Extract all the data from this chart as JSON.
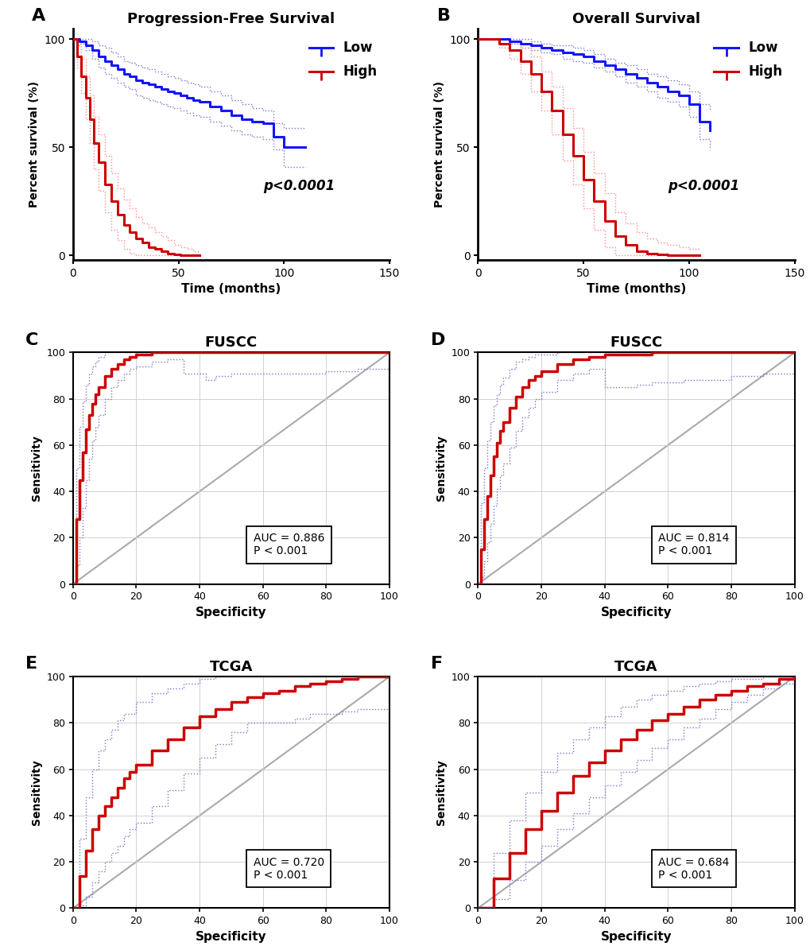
{
  "panel_A": {
    "title": "Progression-Free Survival",
    "xlabel": "Time (months)",
    "ylabel": "Percent survival (%)",
    "xlim": [
      0,
      150
    ],
    "ylim": [
      -2,
      105
    ],
    "xticks": [
      0,
      50,
      100,
      150
    ],
    "yticks": [
      0,
      50,
      100
    ],
    "pvalue": "p<0.0001",
    "label": "A",
    "blue_low": {
      "x": [
        0,
        3,
        6,
        9,
        12,
        15,
        18,
        21,
        24,
        27,
        30,
        33,
        36,
        39,
        42,
        45,
        48,
        51,
        54,
        57,
        60,
        65,
        70,
        75,
        80,
        85,
        90,
        95,
        100,
        105,
        110
      ],
      "y": [
        100,
        99,
        97,
        95,
        92,
        90,
        88,
        86,
        84,
        83,
        81,
        80,
        79,
        78,
        77,
        76,
        75,
        74,
        73,
        72,
        71,
        69,
        67,
        65,
        63,
        62,
        61,
        55,
        50,
        50,
        50
      ],
      "ci_upper": [
        100,
        100,
        100,
        99,
        97,
        96,
        94,
        92,
        90,
        89,
        88,
        87,
        86,
        85,
        84,
        83,
        82,
        81,
        80,
        79,
        78,
        76,
        74,
        72,
        70,
        68,
        67,
        61,
        59,
        59,
        59
      ],
      "ci_lower": [
        100,
        98,
        95,
        91,
        87,
        84,
        82,
        80,
        78,
        77,
        74,
        73,
        72,
        71,
        70,
        69,
        68,
        67,
        66,
        65,
        64,
        62,
        60,
        58,
        56,
        55,
        54,
        49,
        41,
        41,
        41
      ]
    },
    "red_high": {
      "x": [
        0,
        2,
        4,
        6,
        8,
        10,
        12,
        15,
        18,
        21,
        24,
        27,
        30,
        33,
        36,
        39,
        42,
        45,
        48,
        51,
        54,
        57,
        60
      ],
      "y": [
        100,
        92,
        83,
        73,
        63,
        52,
        43,
        33,
        25,
        19,
        14,
        11,
        8,
        6,
        4,
        3,
        2,
        1,
        0.5,
        0.2,
        0.1,
        0,
        0
      ],
      "ci_upper": [
        100,
        97,
        91,
        83,
        74,
        64,
        56,
        46,
        38,
        31,
        26,
        22,
        18,
        15,
        13,
        11,
        9,
        7,
        5,
        4,
        3,
        2,
        2
      ],
      "ci_lower": [
        100,
        87,
        75,
        63,
        52,
        40,
        30,
        20,
        12,
        7,
        3,
        1,
        0,
        0,
        0,
        0,
        0,
        0,
        0,
        0,
        0,
        0,
        0
      ]
    }
  },
  "panel_B": {
    "title": "Overall Survival",
    "xlabel": "Time (months)",
    "ylabel": "Percent survival (%)",
    "xlim": [
      0,
      150
    ],
    "ylim": [
      -2,
      105
    ],
    "xticks": [
      0,
      50,
      100,
      150
    ],
    "yticks": [
      0,
      50,
      100
    ],
    "pvalue": "p<0.0001",
    "label": "B",
    "blue_low": {
      "x": [
        0,
        5,
        10,
        15,
        20,
        25,
        30,
        35,
        40,
        45,
        50,
        55,
        60,
        65,
        70,
        75,
        80,
        85,
        90,
        95,
        100,
        105,
        110
      ],
      "y": [
        100,
        100,
        100,
        99,
        98,
        97,
        96,
        95,
        94,
        93,
        92,
        90,
        88,
        86,
        84,
        82,
        80,
        78,
        76,
        74,
        70,
        62,
        58
      ],
      "ci_upper": [
        100,
        100,
        100,
        100,
        100,
        99,
        98,
        97,
        97,
        96,
        95,
        93,
        91,
        89,
        88,
        86,
        84,
        83,
        81,
        79,
        76,
        70,
        67
      ],
      "ci_lower": [
        100,
        100,
        100,
        98,
        96,
        95,
        94,
        93,
        91,
        90,
        89,
        87,
        85,
        83,
        80,
        78,
        76,
        73,
        71,
        69,
        64,
        54,
        49
      ]
    },
    "red_high": {
      "x": [
        0,
        5,
        10,
        15,
        20,
        25,
        30,
        35,
        40,
        45,
        50,
        55,
        60,
        65,
        70,
        75,
        80,
        85,
        90,
        95,
        100,
        105
      ],
      "y": [
        100,
        100,
        98,
        95,
        90,
        84,
        76,
        67,
        56,
        46,
        35,
        25,
        16,
        9,
        5,
        2,
        1,
        0.5,
        0.2,
        0.1,
        0,
        0
      ],
      "ci_upper": [
        100,
        100,
        100,
        99,
        96,
        92,
        85,
        78,
        68,
        59,
        48,
        38,
        29,
        20,
        15,
        11,
        8,
        6,
        5,
        4,
        3,
        3
      ],
      "ci_lower": [
        100,
        100,
        96,
        91,
        84,
        76,
        67,
        56,
        44,
        33,
        22,
        12,
        4,
        0,
        0,
        0,
        0,
        0,
        0,
        0,
        0,
        0
      ]
    }
  },
  "panel_C": {
    "title": "FUSCC",
    "xlabel": "Specificity",
    "ylabel": "Sensitivity",
    "auc_text": "AUC = 0.886\nP < 0.001",
    "label": "C",
    "roc_x": [
      0,
      1,
      2,
      3,
      4,
      5,
      6,
      7,
      8,
      10,
      12,
      14,
      16,
      18,
      20,
      25,
      30,
      35,
      40,
      45,
      50,
      60,
      70,
      80,
      90,
      100
    ],
    "roc_y": [
      0,
      28,
      45,
      57,
      67,
      73,
      78,
      82,
      85,
      90,
      93,
      95,
      97,
      98,
      99,
      100,
      100,
      100,
      100,
      100,
      100,
      100,
      100,
      100,
      100,
      100
    ],
    "ci_upper_x": [
      0,
      1,
      2,
      3,
      4,
      5,
      6,
      7,
      8,
      10,
      12,
      14,
      16,
      18,
      20,
      25,
      30,
      35,
      40,
      45,
      50,
      60,
      70,
      80,
      90,
      95,
      100
    ],
    "ci_upper_y": [
      0,
      50,
      68,
      79,
      86,
      91,
      94,
      96,
      98,
      100,
      100,
      100,
      100,
      100,
      100,
      100,
      100,
      100,
      100,
      100,
      100,
      100,
      100,
      100,
      100,
      100,
      100
    ],
    "ci_lower_x": [
      0,
      1,
      2,
      3,
      4,
      5,
      6,
      7,
      8,
      10,
      12,
      14,
      16,
      18,
      20,
      25,
      30,
      35,
      40,
      42,
      45,
      50,
      55,
      60,
      65,
      70,
      80,
      90,
      100
    ],
    "ci_lower_y": [
      0,
      8,
      20,
      33,
      45,
      54,
      62,
      68,
      73,
      80,
      85,
      88,
      91,
      93,
      94,
      96,
      97,
      91,
      91,
      88,
      90,
      91,
      91,
      91,
      91,
      91,
      92,
      93,
      94
    ]
  },
  "panel_D": {
    "title": "FUSCC",
    "xlabel": "Specificity",
    "ylabel": "Sensitivity",
    "auc_text": "AUC = 0.814\nP < 0.001",
    "label": "D",
    "roc_x": [
      0,
      1,
      2,
      3,
      4,
      5,
      6,
      7,
      8,
      10,
      12,
      14,
      16,
      18,
      20,
      25,
      30,
      35,
      40,
      45,
      50,
      55,
      60,
      70,
      80,
      90,
      100
    ],
    "roc_y": [
      0,
      15,
      28,
      38,
      47,
      55,
      61,
      66,
      70,
      76,
      81,
      85,
      88,
      90,
      92,
      95,
      97,
      98,
      99,
      99,
      99,
      100,
      100,
      100,
      100,
      100,
      100
    ],
    "ci_upper_x": [
      0,
      1,
      2,
      3,
      4,
      5,
      6,
      7,
      8,
      10,
      12,
      14,
      16,
      18,
      20,
      25,
      30,
      35,
      40,
      45,
      50,
      60,
      70,
      80,
      90,
      100
    ],
    "ci_upper_y": [
      0,
      35,
      50,
      62,
      70,
      77,
      82,
      86,
      89,
      93,
      96,
      97,
      98,
      99,
      99,
      100,
      100,
      100,
      100,
      100,
      100,
      100,
      100,
      100,
      100,
      100
    ],
    "ci_lower_x": [
      0,
      1,
      2,
      3,
      4,
      5,
      6,
      7,
      8,
      10,
      12,
      14,
      16,
      18,
      20,
      25,
      30,
      35,
      40,
      45,
      50,
      55,
      60,
      65,
      70,
      80,
      90,
      100
    ],
    "ci_lower_y": [
      0,
      3,
      10,
      18,
      26,
      34,
      41,
      47,
      52,
      59,
      66,
      72,
      76,
      80,
      83,
      88,
      91,
      93,
      85,
      85,
      86,
      87,
      87,
      88,
      88,
      90,
      91,
      92
    ]
  },
  "panel_E": {
    "title": "TCGA",
    "xlabel": "Specificity",
    "ylabel": "Sensitivity",
    "auc_text": "AUC = 0.720\nP < 0.001",
    "label": "E",
    "roc_x": [
      0,
      2,
      4,
      6,
      8,
      10,
      12,
      14,
      16,
      18,
      20,
      25,
      30,
      35,
      40,
      45,
      50,
      55,
      60,
      65,
      70,
      75,
      80,
      85,
      90,
      95,
      100
    ],
    "roc_y": [
      0,
      14,
      25,
      34,
      40,
      44,
      48,
      52,
      56,
      59,
      62,
      68,
      73,
      78,
      83,
      86,
      89,
      91,
      93,
      94,
      96,
      97,
      98,
      99,
      100,
      100,
      100
    ],
    "ci_upper_x": [
      0,
      2,
      4,
      6,
      8,
      10,
      12,
      14,
      16,
      20,
      25,
      30,
      35,
      40,
      45,
      50,
      55,
      60,
      65,
      70,
      75,
      80,
      85,
      90,
      95,
      100
    ],
    "ci_upper_y": [
      0,
      30,
      48,
      60,
      68,
      73,
      77,
      81,
      84,
      89,
      93,
      95,
      97,
      99,
      100,
      100,
      100,
      100,
      100,
      100,
      100,
      100,
      100,
      100,
      100,
      100
    ],
    "ci_lower_x": [
      0,
      2,
      4,
      6,
      8,
      10,
      12,
      14,
      16,
      18,
      20,
      25,
      30,
      35,
      40,
      45,
      50,
      55,
      60,
      65,
      70,
      75,
      80,
      85,
      90,
      95,
      100
    ],
    "ci_lower_y": [
      0,
      1,
      5,
      11,
      16,
      20,
      24,
      27,
      31,
      34,
      37,
      44,
      51,
      58,
      65,
      71,
      76,
      80,
      80,
      80,
      82,
      84,
      84,
      85,
      86,
      86,
      87
    ]
  },
  "panel_F": {
    "title": "TCGA",
    "xlabel": "Specificity",
    "ylabel": "Sensitivity",
    "auc_text": "AUC = 0.684\nP < 0.001",
    "label": "F",
    "roc_x": [
      0,
      5,
      10,
      15,
      20,
      25,
      30,
      35,
      40,
      45,
      50,
      55,
      60,
      65,
      70,
      75,
      80,
      85,
      90,
      95,
      100
    ],
    "roc_y": [
      0,
      13,
      24,
      34,
      42,
      50,
      57,
      63,
      68,
      73,
      77,
      81,
      84,
      87,
      90,
      92,
      94,
      96,
      97,
      99,
      100
    ],
    "ci_upper_x": [
      0,
      5,
      10,
      15,
      20,
      25,
      30,
      35,
      40,
      45,
      50,
      55,
      60,
      65,
      70,
      75,
      80,
      85,
      90,
      95,
      100
    ],
    "ci_upper_y": [
      0,
      24,
      38,
      50,
      59,
      67,
      73,
      78,
      83,
      87,
      90,
      92,
      94,
      96,
      97,
      98,
      99,
      99,
      100,
      100,
      100
    ],
    "ci_lower_x": [
      0,
      5,
      10,
      15,
      20,
      25,
      30,
      35,
      40,
      45,
      50,
      55,
      60,
      65,
      70,
      75,
      80,
      85,
      90,
      95,
      100
    ],
    "ci_lower_y": [
      0,
      4,
      12,
      20,
      27,
      34,
      41,
      48,
      53,
      59,
      64,
      69,
      73,
      78,
      82,
      86,
      89,
      92,
      95,
      97,
      99
    ]
  },
  "colors": {
    "blue": "#1515FF",
    "red": "#CC0000",
    "blue_ci": "#7777CC",
    "red_ci": "#FF8888",
    "gray_diag": "#AAAAAA",
    "grid": "#CCCCCC"
  },
  "legend": {
    "low_label": "Low",
    "high_label": "High"
  }
}
